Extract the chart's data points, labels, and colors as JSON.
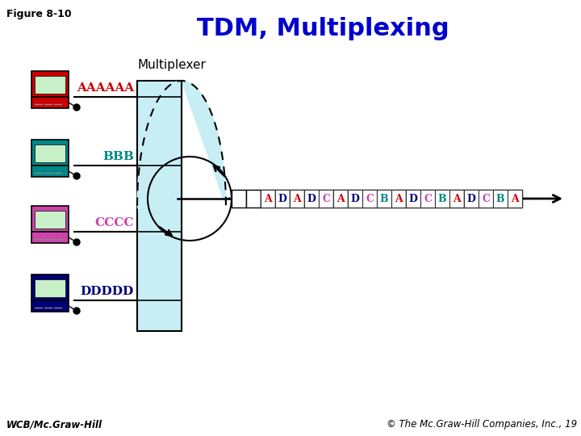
{
  "title": "TDM, Multiplexing",
  "title_color": "#0000CC",
  "title_fontsize": 22,
  "fig_label": "Figure 8-10",
  "footer_left": "WCB/Mc.Graw-Hill",
  "footer_right": "© The Mc.Graw-Hill Companies, Inc., 19",
  "multiplexer_label": "Multiplexer",
  "bg_color": "#ffffff",
  "computer_colors": [
    "#cc0000",
    "#008888",
    "#cc44aa",
    "#000077"
  ],
  "computer_labels": [
    "AAAAAA",
    "BBB",
    "CCCC",
    "DDDDD"
  ],
  "label_colors": [
    "#cc0000",
    "#008888",
    "#cc44aa",
    "#000077"
  ],
  "mux_fill": "#c8eef5",
  "frame_sequence": [
    {
      "letters": [],
      "colors": []
    },
    {
      "letters": [],
      "colors": []
    },
    {
      "letters": [
        "A"
      ],
      "colors": [
        "#cc0000"
      ]
    },
    {
      "letters": [
        "D"
      ],
      "colors": [
        "#000077"
      ]
    },
    {
      "letters": [
        "A"
      ],
      "colors": [
        "#cc0000"
      ]
    },
    {
      "letters": [
        "D",
        "C"
      ],
      "colors": [
        "#000077",
        "#cc44aa"
      ]
    },
    {
      "letters": [
        "A"
      ],
      "colors": [
        "#cc0000"
      ]
    },
    {
      "letters": [
        "D",
        "C",
        "B",
        "A"
      ],
      "colors": [
        "#000077",
        "#cc44aa",
        "#008888",
        "#cc0000"
      ]
    },
    {
      "letters": [
        "D",
        "C",
        "B",
        "A"
      ],
      "colors": [
        "#000077",
        "#cc44aa",
        "#008888",
        "#cc0000"
      ]
    },
    {
      "letters": [
        "D",
        "C",
        "B",
        "A"
      ],
      "colors": [
        "#000077",
        "#cc44aa",
        "#008888",
        "#cc0000"
      ]
    }
  ]
}
